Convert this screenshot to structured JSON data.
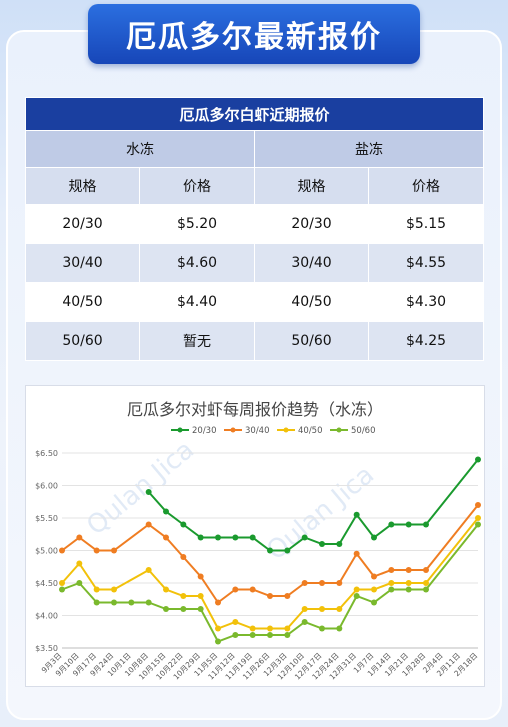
{
  "banner": {
    "title": "厄瓜多尔最新报价"
  },
  "table": {
    "title": "厄瓜多尔白虾近期报价",
    "groups": [
      "水冻",
      "盐冻"
    ],
    "columns": [
      "规格",
      "价格",
      "规格",
      "价格"
    ],
    "rows": [
      {
        "spec_a": "20/30",
        "price_a": "$5.20",
        "spec_b": "20/30",
        "price_b": "$5.15"
      },
      {
        "spec_a": "30/40",
        "price_a": "$4.60",
        "spec_b": "30/40",
        "price_b": "$4.55"
      },
      {
        "spec_a": "40/50",
        "price_a": "$4.40",
        "spec_b": "40/50",
        "price_b": "$4.30"
      },
      {
        "spec_a": "50/60",
        "price_a": "暂无",
        "spec_b": "50/60",
        "price_b": "$4.25"
      }
    ]
  },
  "watermark": {
    "text": "Qulan Jica"
  },
  "chart_data": {
    "type": "line",
    "title": "厄瓜多尔对虾每周报价趋势（水冻）",
    "legend_position": "top",
    "grid": true,
    "ylim": [
      3.5,
      6.5
    ],
    "yticks": [
      "$3.50",
      "$4.00",
      "$4.50",
      "$5.00",
      "$5.50",
      "$6.00",
      "$6.50"
    ],
    "categories": [
      "9月3日",
      "9月10日",
      "9月17日",
      "9月24日",
      "10月1日",
      "10月8日",
      "10月15日",
      "10月22日",
      "10月29日",
      "11月5日",
      "11月12日",
      "11月19日",
      "11月26日",
      "12月3日",
      "12月10日",
      "12月17日",
      "12月24日",
      "12月31日",
      "1月7日",
      "1月14日",
      "1月21日",
      "1月28日",
      "2月4日",
      "2月11日",
      "2月18日"
    ],
    "tick_labels": [
      "9月3日",
      "9月10日",
      "9月17日",
      "9月24日",
      "10月1日",
      "10月8日",
      "10月15日",
      "10月22日",
      "10月29日",
      "11月5日",
      "11月12日",
      "11月19日",
      "11月26日",
      "12月3日",
      "12月10日",
      "12月17日",
      "12月24日",
      "12月31日",
      "1月7日",
      "1月14日",
      "1月21日",
      "1月28日",
      "2月4日",
      "2月11日",
      "2月18日"
    ],
    "series": [
      {
        "name": "20/30",
        "color": "#1a9a2e",
        "values": [
          null,
          null,
          null,
          null,
          null,
          5.9,
          5.6,
          5.4,
          5.2,
          5.2,
          5.2,
          5.2,
          5.0,
          5.0,
          5.2,
          5.1,
          5.1,
          5.55,
          5.2,
          5.4,
          5.4,
          5.4,
          null,
          null,
          6.4
        ]
      },
      {
        "name": "30/40",
        "color": "#ef7d22",
        "values": [
          5.0,
          5.2,
          5.0,
          5.0,
          null,
          5.4,
          5.2,
          4.9,
          4.6,
          4.2,
          4.4,
          4.4,
          4.3,
          4.3,
          4.5,
          4.5,
          4.5,
          4.95,
          4.6,
          4.7,
          4.7,
          4.7,
          null,
          null,
          5.7
        ]
      },
      {
        "name": "40/50",
        "color": "#f2c10a",
        "values": [
          4.5,
          4.8,
          4.4,
          4.4,
          null,
          4.7,
          4.4,
          4.3,
          4.3,
          3.8,
          3.9,
          3.8,
          3.8,
          3.8,
          4.1,
          4.1,
          4.1,
          4.4,
          4.4,
          4.5,
          4.5,
          4.5,
          null,
          null,
          5.5
        ]
      },
      {
        "name": "50/60",
        "color": "#7ab92d",
        "values": [
          4.4,
          4.5,
          4.2,
          4.2,
          4.2,
          4.2,
          4.1,
          4.1,
          4.1,
          3.6,
          3.7,
          3.7,
          3.7,
          3.7,
          3.9,
          3.8,
          3.8,
          4.3,
          4.2,
          4.4,
          4.4,
          4.4,
          null,
          null,
          5.4
        ]
      }
    ]
  }
}
